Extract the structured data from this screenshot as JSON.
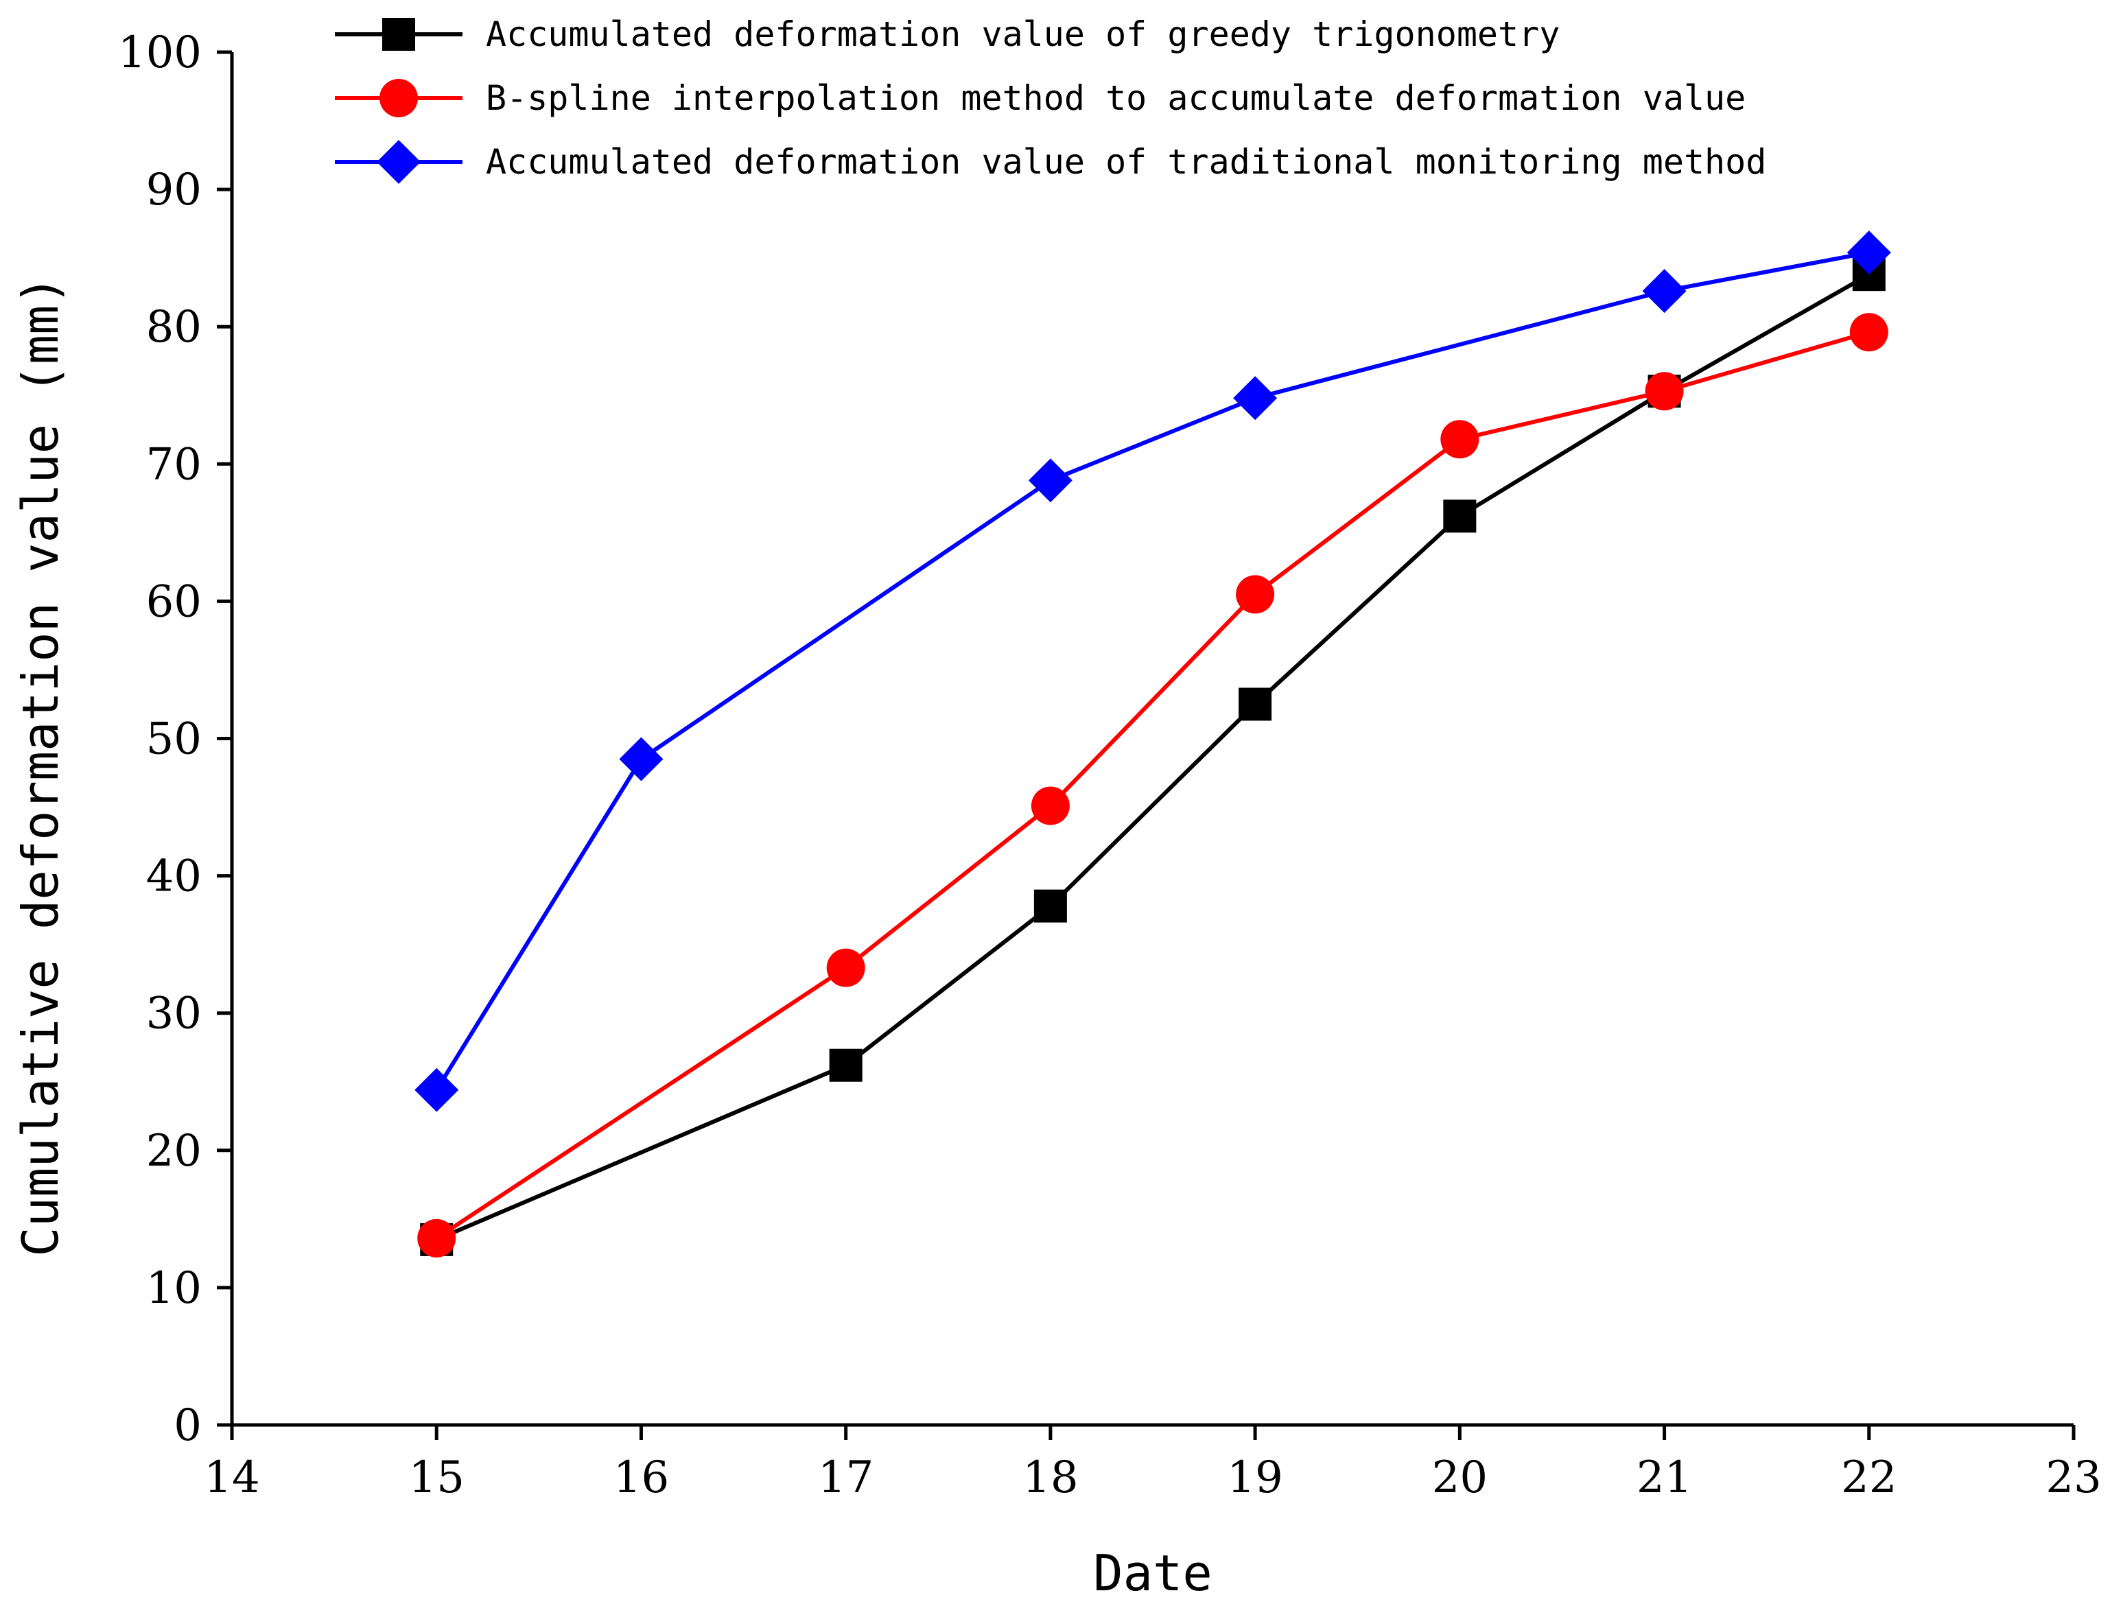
{
  "chart_data": {
    "type": "line",
    "xlabel": "Date",
    "ylabel": "Cumulative deformation value (mm)",
    "xlim": [
      14,
      23
    ],
    "ylim": [
      0,
      100
    ],
    "xticks": [
      14,
      15,
      16,
      17,
      18,
      19,
      20,
      21,
      22,
      23
    ],
    "yticks": [
      0,
      10,
      20,
      30,
      40,
      50,
      60,
      70,
      80,
      90,
      100
    ],
    "grid": false,
    "legend_position": "top",
    "series": [
      {
        "name": "Accumulated deformation value of greedy trigonometry",
        "color": "#000000",
        "marker": "square",
        "x": [
          15,
          17,
          18,
          19,
          20,
          21,
          22
        ],
        "y": [
          13.5,
          26.2,
          37.8,
          52.5,
          66.2,
          75.3,
          83.8
        ]
      },
      {
        "name": "B-spline interpolation method to accumulate deformation value",
        "color": "#ff0000",
        "marker": "circle",
        "x": [
          15,
          17,
          18,
          19,
          20,
          21,
          22
        ],
        "y": [
          13.6,
          33.3,
          45.1,
          60.5,
          71.8,
          75.3,
          79.6
        ]
      },
      {
        "name": "Accumulated deformation value of traditional monitoring method",
        "color": "#0000ff",
        "marker": "diamond",
        "x": [
          15,
          16,
          18,
          19,
          21,
          22
        ],
        "y": [
          24.4,
          48.5,
          68.8,
          74.8,
          82.6,
          85.4
        ]
      }
    ]
  }
}
